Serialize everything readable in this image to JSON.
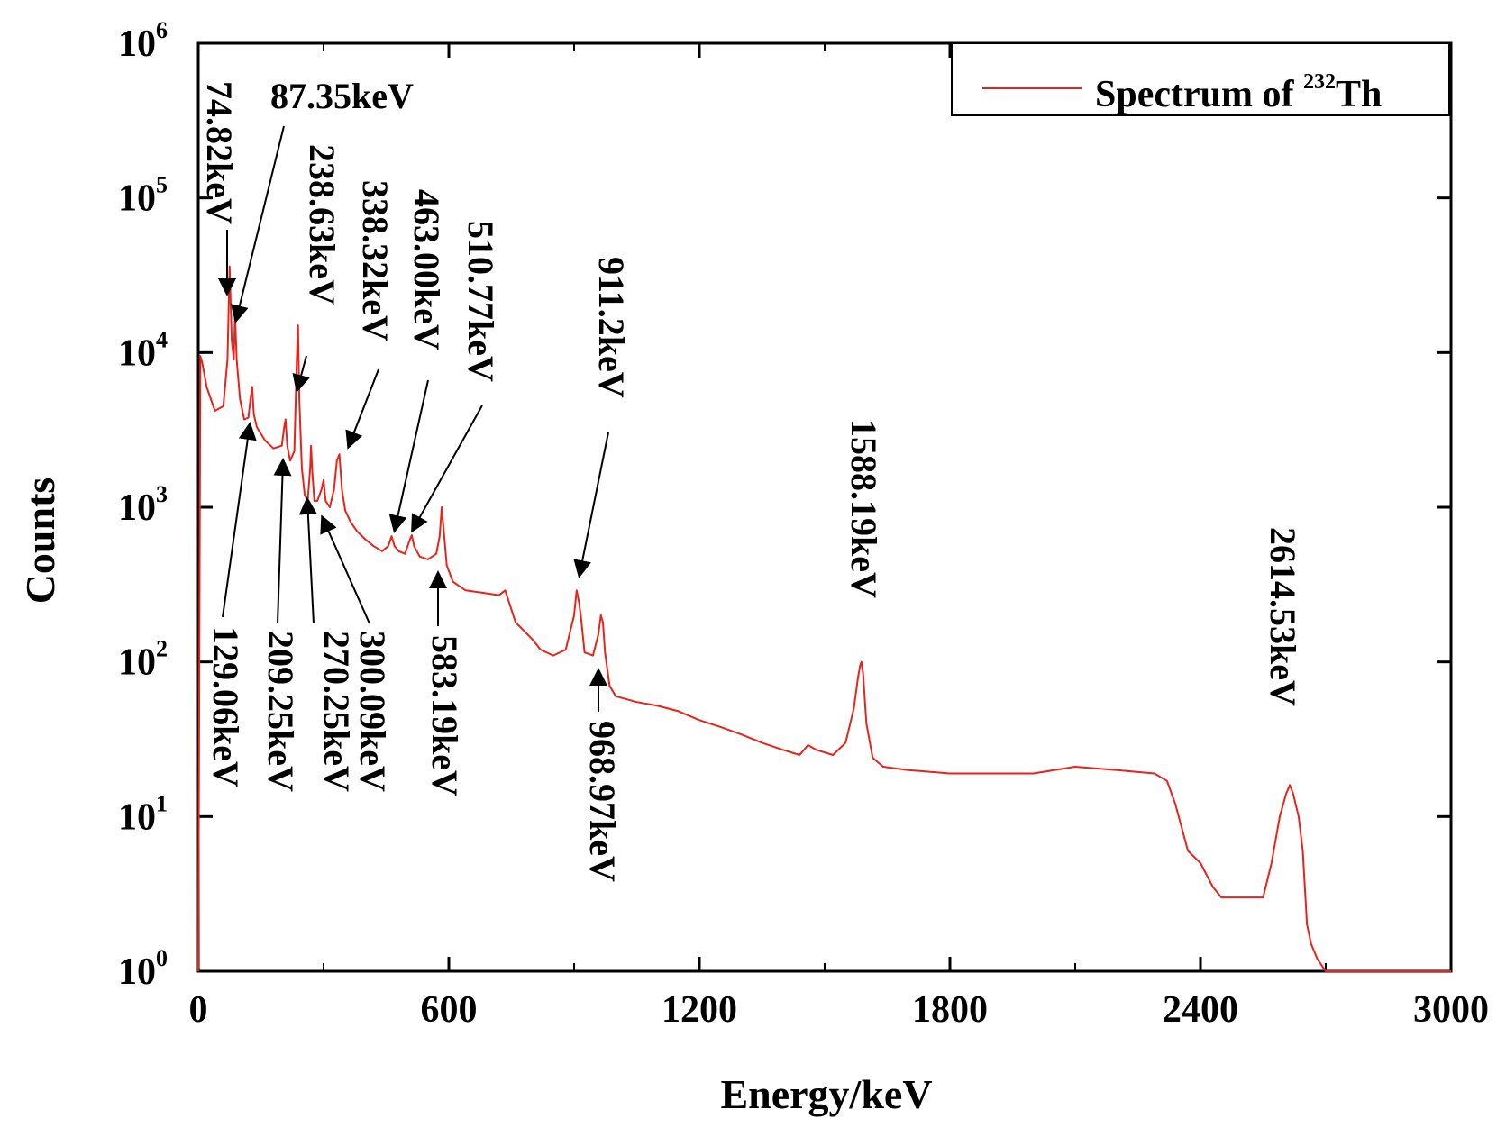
{
  "chart_data": {
    "type": "line",
    "xlabel": "Energy/keV",
    "ylabel": "Counts",
    "xlim": [
      0,
      3000
    ],
    "ylim": [
      1,
      1000000
    ],
    "y_scale": "log",
    "x_ticks": [
      "0",
      "600",
      "1200",
      "1800",
      "2400",
      "3000"
    ],
    "x_tick_values": [
      0,
      600,
      1200,
      1800,
      2400,
      3000
    ],
    "y_ticks": [
      {
        "base": "10",
        "exp": "0"
      },
      {
        "base": "10",
        "exp": "1"
      },
      {
        "base": "10",
        "exp": "2"
      },
      {
        "base": "10",
        "exp": "3"
      },
      {
        "base": "10",
        "exp": "4"
      },
      {
        "base": "10",
        "exp": "5"
      },
      {
        "base": "10",
        "exp": "6"
      }
    ],
    "legend": {
      "prefix": "Spectrum of ",
      "superscript": "232",
      "suffix": "Th",
      "position": "top-right"
    },
    "series": [
      {
        "name": "Spectrum of 232Th",
        "color": "#e8231c",
        "x": [
          0,
          5,
          10,
          20,
          40,
          60,
          70,
          75,
          80,
          85,
          88,
          92,
          100,
          110,
          120,
          125,
          129,
          133,
          140,
          160,
          180,
          200,
          205,
          209,
          213,
          220,
          230,
          236,
          239,
          242,
          248,
          255,
          262,
          268,
          270,
          273,
          278,
          285,
          295,
          300,
          305,
          315,
          325,
          332,
          338,
          344,
          352,
          365,
          380,
          400,
          420,
          440,
          455,
          463,
          470,
          480,
          495,
          505,
          511,
          517,
          530,
          550,
          570,
          578,
          583,
          588,
          595,
          610,
          640,
          680,
          720,
          735,
          760,
          800,
          820,
          850,
          880,
          900,
          906,
          911,
          916,
          925,
          945,
          958,
          964,
          969,
          974,
          985,
          1000,
          1050,
          1100,
          1150,
          1200,
          1250,
          1300,
          1350,
          1400,
          1440,
          1460,
          1480,
          1520,
          1550,
          1570,
          1580,
          1585,
          1588,
          1592,
          1600,
          1615,
          1640,
          1700,
          1800,
          1900,
          2000,
          2100,
          2200,
          2290,
          2320,
          2340,
          2370,
          2400,
          2430,
          2450,
          2500,
          2550,
          2570,
          2590,
          2605,
          2614,
          2622,
          2635,
          2645,
          2655,
          2665,
          2680,
          2700,
          2750,
          2800,
          2850,
          2900,
          2950,
          3000
        ],
        "values": [
          1,
          9500,
          8500,
          6000,
          4200,
          4500,
          9000,
          36000,
          12000,
          9000,
          18000,
          9000,
          5000,
          3700,
          3800,
          5000,
          6000,
          4000,
          3300,
          2700,
          2400,
          2500,
          3200,
          3700,
          2500,
          2000,
          2300,
          9000,
          15000,
          5000,
          1800,
          1200,
          1100,
          1800,
          2500,
          1700,
          1100,
          1100,
          1300,
          1500,
          1100,
          1000,
          1300,
          2000,
          2200,
          1300,
          950,
          800,
          700,
          620,
          560,
          520,
          560,
          650,
          560,
          520,
          500,
          600,
          660,
          560,
          480,
          460,
          500,
          650,
          1000,
          700,
          420,
          330,
          290,
          280,
          270,
          290,
          180,
          140,
          120,
          110,
          120,
          200,
          290,
          250,
          200,
          115,
          110,
          150,
          200,
          180,
          115,
          70,
          60,
          55,
          52,
          48,
          42,
          38,
          34,
          30,
          27,
          25,
          29,
          27,
          25,
          30,
          50,
          80,
          95,
          100,
          85,
          40,
          24,
          21,
          20,
          19,
          19,
          19,
          21,
          20,
          19,
          17,
          12,
          6,
          5,
          3.5,
          3,
          3,
          3,
          5,
          10,
          14,
          16,
          14,
          10,
          6,
          2,
          1.5,
          1.2,
          1,
          1,
          1,
          1,
          1,
          1,
          1
        ]
      }
    ],
    "annotations": [
      {
        "label": "74.82keV",
        "energy": 74.82
      },
      {
        "label": "87.35keV",
        "energy": 87.35
      },
      {
        "label": "238.63keV",
        "energy": 238.63
      },
      {
        "label": "338.32keV",
        "energy": 338.32
      },
      {
        "label": "463.00keV",
        "energy": 463.0
      },
      {
        "label": "510.77keV",
        "energy": 510.77
      },
      {
        "label": "911.2keV",
        "energy": 911.2
      },
      {
        "label": "1588.19keV",
        "energy": 1588.19
      },
      {
        "label": "2614.53keV",
        "energy": 2614.53
      },
      {
        "label": "129.06keV",
        "energy": 129.06
      },
      {
        "label": "209.25keV",
        "energy": 209.25
      },
      {
        "label": "270.25keV",
        "energy": 270.25
      },
      {
        "label": "300.09keV",
        "energy": 300.09
      },
      {
        "label": "583.19keV",
        "energy": 583.19
      },
      {
        "label": "968.97keV",
        "energy": 968.97
      }
    ]
  }
}
